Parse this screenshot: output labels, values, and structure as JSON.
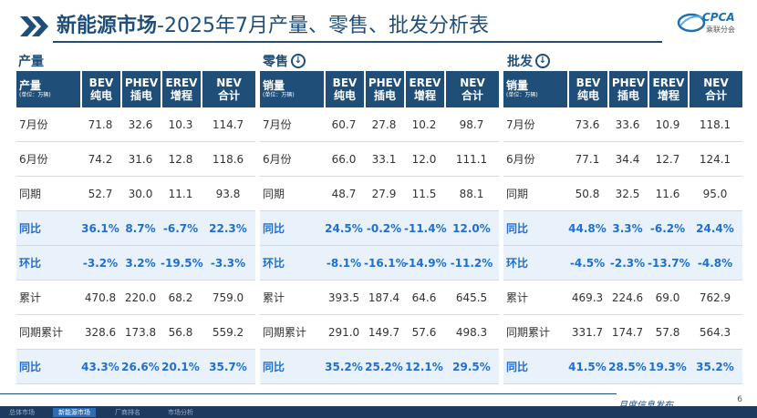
{
  "header": {
    "title_strong": "新能源市场",
    "title_rest": "-2025年7月产量、零售、批发分析表",
    "logo_text": "CPCA",
    "logo_sub": "乘联分会"
  },
  "sections": [
    {
      "label": "产量",
      "has_arrow": false,
      "first_header": "产量",
      "unit": "(单位：万辆)",
      "columns": [
        {
          "top": "BEV",
          "bottom": "纯电"
        },
        {
          "top": "PHEV",
          "bottom": "插电"
        },
        {
          "top": "EREV",
          "bottom": "增程"
        },
        {
          "top": "NEV",
          "bottom": "合计"
        }
      ],
      "rows": [
        {
          "label": "7月份",
          "values": [
            "71.8",
            "32.6",
            "10.3",
            "114.7"
          ],
          "hl": false
        },
        {
          "label": "6月份",
          "values": [
            "74.2",
            "31.6",
            "12.8",
            "118.6"
          ],
          "hl": false
        },
        {
          "label": "同期",
          "values": [
            "52.7",
            "30.0",
            "11.1",
            "93.8"
          ],
          "hl": false
        },
        {
          "label": "同比",
          "values": [
            "36.1%",
            "8.7%",
            "-6.7%",
            "22.3%"
          ],
          "hl": true
        },
        {
          "label": "环比",
          "values": [
            "-3.2%",
            "3.2%",
            "-19.5%",
            "-3.3%"
          ],
          "hl": true
        },
        {
          "label": "累计",
          "values": [
            "470.8",
            "220.0",
            "68.2",
            "759.0"
          ],
          "hl": false
        },
        {
          "label": "同期累计",
          "values": [
            "328.6",
            "173.8",
            "56.8",
            "559.2"
          ],
          "hl": false
        },
        {
          "label": "同比",
          "values": [
            "43.3%",
            "26.6%",
            "20.1%",
            "35.7%"
          ],
          "hl": true
        }
      ]
    },
    {
      "label": "零售",
      "has_arrow": true,
      "first_header": "销量",
      "unit": "(单位：万辆)",
      "columns": [
        {
          "top": "BEV",
          "bottom": "纯电"
        },
        {
          "top": "PHEV",
          "bottom": "插电"
        },
        {
          "top": "EREV",
          "bottom": "增程"
        },
        {
          "top": "NEV",
          "bottom": "合计"
        }
      ],
      "rows": [
        {
          "label": "7月份",
          "values": [
            "60.7",
            "27.8",
            "10.2",
            "98.7"
          ],
          "hl": false
        },
        {
          "label": "6月份",
          "values": [
            "66.0",
            "33.1",
            "12.0",
            "111.1"
          ],
          "hl": false
        },
        {
          "label": "同期",
          "values": [
            "48.7",
            "27.9",
            "11.5",
            "88.1"
          ],
          "hl": false
        },
        {
          "label": "同比",
          "values": [
            "24.5%",
            "-0.2%",
            "-11.4%",
            "12.0%"
          ],
          "hl": true
        },
        {
          "label": "环比",
          "values": [
            "-8.1%",
            "-16.1%",
            "-14.9%",
            "-11.2%"
          ],
          "hl": true
        },
        {
          "label": "累计",
          "values": [
            "393.5",
            "187.4",
            "64.6",
            "645.5"
          ],
          "hl": false
        },
        {
          "label": "同期累计",
          "values": [
            "291.0",
            "149.7",
            "57.6",
            "498.3"
          ],
          "hl": false
        },
        {
          "label": "同比",
          "values": [
            "35.2%",
            "25.2%",
            "12.1%",
            "29.5%"
          ],
          "hl": true
        }
      ]
    },
    {
      "label": "批发",
      "has_arrow": true,
      "first_header": "销量",
      "unit": "(单位：万辆)",
      "columns": [
        {
          "top": "BEV",
          "bottom": "纯电"
        },
        {
          "top": "PHEV",
          "bottom": "插电"
        },
        {
          "top": "EREV",
          "bottom": "增程"
        },
        {
          "top": "NEV",
          "bottom": "合计"
        }
      ],
      "rows": [
        {
          "label": "7月份",
          "values": [
            "73.6",
            "33.6",
            "10.9",
            "118.1"
          ],
          "hl": false
        },
        {
          "label": "6月份",
          "values": [
            "77.1",
            "34.4",
            "12.7",
            "124.1"
          ],
          "hl": false
        },
        {
          "label": "同期",
          "values": [
            "50.8",
            "32.5",
            "11.6",
            "95.0"
          ],
          "hl": false
        },
        {
          "label": "同比",
          "values": [
            "44.8%",
            "3.3%",
            "-6.2%",
            "24.4%"
          ],
          "hl": true
        },
        {
          "label": "环比",
          "values": [
            "-4.5%",
            "-2.3%",
            "-13.7%",
            "-4.8%"
          ],
          "hl": true
        },
        {
          "label": "累计",
          "values": [
            "469.3",
            "224.6",
            "69.0",
            "762.9"
          ],
          "hl": false
        },
        {
          "label": "同期累计",
          "values": [
            "331.7",
            "174.7",
            "57.8",
            "564.3"
          ],
          "hl": false
        },
        {
          "label": "同比",
          "values": [
            "41.5%",
            "28.5%",
            "19.3%",
            "35.2%"
          ],
          "hl": true
        }
      ]
    }
  ],
  "footer": {
    "tabs": [
      "总体市场",
      "新能源市场",
      "厂商排名",
      "市场分析"
    ],
    "active_tab": 1,
    "publish": "月度信息发布",
    "page": "6"
  },
  "colors": {
    "header_blue": "#1f4e79",
    "highlight_text": "#1f6fd2",
    "highlight_bg": "#e9f1fa"
  }
}
